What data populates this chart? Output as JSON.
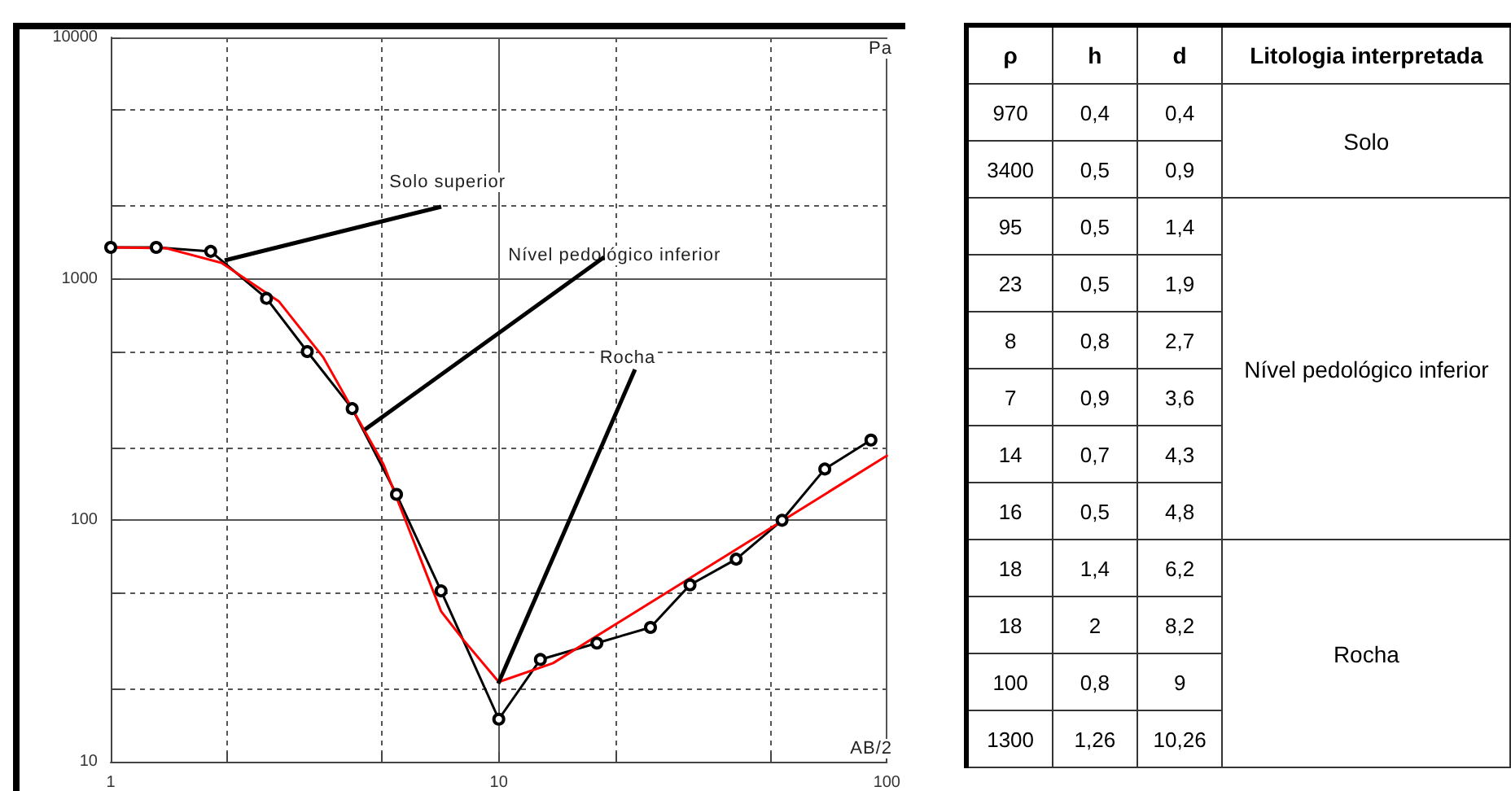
{
  "chart_data": [
    {
      "type": "line",
      "xlabel": "AB/2",
      "ylabel": "Pa",
      "log": "xy",
      "grid": true,
      "xlim": [
        1,
        100
      ],
      "xticks": [
        1,
        {
          "value": 2,
          "label": null
        },
        {
          "value": 5,
          "label": null
        },
        10,
        {
          "value": 20,
          "label": null
        },
        {
          "value": 50,
          "label": null
        },
        100
      ],
      "ylim": [
        10,
        10000
      ],
      "yticks": [
        10,
        {
          "value": 20,
          "label": null
        },
        {
          "value": 50,
          "label": null
        },
        100,
        {
          "value": 200,
          "label": null
        },
        {
          "value": 500,
          "label": null
        },
        1000,
        {
          "value": 2000,
          "label": null
        },
        {
          "value": 5000,
          "label": null
        },
        10000
      ],
      "series": [
        {
          "color": "#000000",
          "marker": "circle",
          "x": [
            1,
            1.31,
            1.81,
            2.52,
            3.21,
            4.19,
            5.45,
            7.1,
            10,
            12.8,
            17.9,
            24.6,
            31.1,
            40.9,
            53.7,
            69.2,
            91
          ],
          "values": [
            1350,
            1350,
            1300,
            830,
            500,
            290,
            128,
            51,
            15,
            26.5,
            31,
            36,
            54,
            69,
            100,
            163,
            215
          ]
        },
        {
          "color": "#ff0000",
          "marker": "none",
          "x": [
            1,
            1.39,
            1.93,
            2.71,
            3.53,
            5.05,
            7.1,
            8.1,
            10,
            13.8,
            100
          ],
          "values": [
            1350,
            1340,
            1165,
            808,
            473,
            170,
            42,
            32,
            21.4,
            25.6,
            185
          ]
        }
      ],
      "annotations": [
        {
          "text": "Solo superior",
          "x": 1.97,
          "y": 1200
        },
        {
          "text": "Nível pedológico inferior",
          "x": 4.52,
          "y": 239
        },
        {
          "text": "Rocha",
          "x": 10,
          "y": 21
        }
      ]
    },
    {
      "type": "other",
      "categories": [
        "ρ",
        "h",
        "d",
        "Litologia interpretada"
      ],
      "cell_labels": [
        [
          "970",
          "0,4",
          "0,4",
          "Solo"
        ],
        [
          "3400",
          "0,5",
          "0,9",
          null
        ],
        [
          "95",
          "0,5",
          "1,4",
          "Nível pedológico inferior"
        ],
        [
          "23",
          "0,5",
          "1,9",
          null
        ],
        [
          "8",
          "0,8",
          "2,7",
          null
        ],
        [
          "7",
          "0,9",
          "3,6",
          null
        ],
        [
          "14",
          "0,7",
          "4,3",
          null
        ],
        [
          "16",
          "0,5",
          "4,8",
          null
        ],
        [
          "18",
          "1,4",
          "6,2",
          "Rocha"
        ],
        [
          "18",
          "2",
          "8,2",
          null
        ],
        [
          "100",
          "0,8",
          "9",
          null
        ],
        [
          "1300",
          "1,26",
          "10,26",
          null
        ]
      ]
    }
  ]
}
